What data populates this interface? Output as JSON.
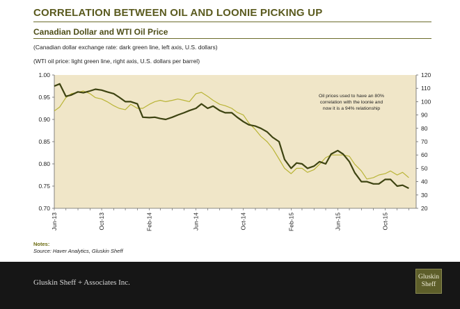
{
  "header": {
    "main_title": "CORRELATION BETWEEN OIL AND LOONIE PICKING UP",
    "chart_title": "Canadian Dollar and WTI Oil Price",
    "subtitle_1": "(Canadian dollar exchange rate: dark green line, left axis, U.S. dollars)",
    "subtitle_2": "(WTI oil price: light green line, right axis, U.S. dollars per barrel)"
  },
  "notes": {
    "heading": "Notes:",
    "source": "Source: Haver Analytics, Gluskin Sheff"
  },
  "footer": {
    "company": "Gluskin Sheff + Associates Inc.",
    "logo_line1": "Gluskin",
    "logo_line2": "Sheff"
  },
  "colors": {
    "plot_background": "#f0e6c8",
    "cad_line": "#3d4311",
    "oil_line": "#b9b436",
    "title": "#5a5a1e",
    "footer_background": "#161616"
  },
  "chart_data": {
    "type": "line",
    "x_tick_labels": [
      "Jun-13",
      "Oct-13",
      "Feb-14",
      "Jun-14",
      "Oct-14",
      "Feb-15",
      "Jun-15",
      "Oct-15"
    ],
    "x": [
      "2013-06-01",
      "2013-06-15",
      "2013-07-01",
      "2013-07-15",
      "2013-08-01",
      "2013-08-15",
      "2013-09-01",
      "2013-09-15",
      "2013-10-01",
      "2013-10-15",
      "2013-11-01",
      "2013-11-15",
      "2013-12-01",
      "2013-12-15",
      "2014-01-01",
      "2014-01-15",
      "2014-02-01",
      "2014-02-15",
      "2014-03-01",
      "2014-03-15",
      "2014-04-01",
      "2014-04-15",
      "2014-05-01",
      "2014-05-15",
      "2014-06-01",
      "2014-06-15",
      "2014-07-01",
      "2014-07-15",
      "2014-08-01",
      "2014-08-15",
      "2014-09-01",
      "2014-09-15",
      "2014-10-01",
      "2014-10-15",
      "2014-11-01",
      "2014-11-15",
      "2014-12-01",
      "2014-12-15",
      "2015-01-01",
      "2015-01-15",
      "2015-02-01",
      "2015-02-15",
      "2015-03-01",
      "2015-03-15",
      "2015-04-01",
      "2015-04-15",
      "2015-05-01",
      "2015-05-15",
      "2015-06-01",
      "2015-06-15",
      "2015-07-01",
      "2015-07-15",
      "2015-08-01",
      "2015-08-15",
      "2015-09-01",
      "2015-09-15",
      "2015-10-01",
      "2015-10-15",
      "2015-11-01",
      "2015-11-15",
      "2015-12-01"
    ],
    "series": [
      {
        "axis": "left",
        "values": [
          0.975,
          0.98,
          0.952,
          0.955,
          0.962,
          0.96,
          0.964,
          0.968,
          0.966,
          0.962,
          0.958,
          0.95,
          0.94,
          0.94,
          0.935,
          0.905,
          0.904,
          0.905,
          0.902,
          0.9,
          0.905,
          0.91,
          0.915,
          0.92,
          0.925,
          0.935,
          0.925,
          0.93,
          0.92,
          0.915,
          0.915,
          0.905,
          0.895,
          0.888,
          0.885,
          0.88,
          0.872,
          0.86,
          0.85,
          0.81,
          0.79,
          0.802,
          0.8,
          0.79,
          0.795,
          0.805,
          0.8,
          0.822,
          0.83,
          0.822,
          0.805,
          0.78,
          0.76,
          0.76,
          0.755,
          0.755,
          0.765,
          0.765,
          0.75,
          0.752,
          0.745
        ]
      },
      {
        "axis": "right",
        "values": [
          93,
          96,
          103,
          106,
          107,
          108,
          106,
          103,
          102,
          100,
          97,
          95,
          94,
          98,
          95,
          95,
          98,
          100,
          101,
          100,
          101,
          102,
          101,
          100,
          106,
          107,
          104,
          101,
          98,
          97,
          95,
          92,
          90,
          84,
          79,
          74,
          70,
          65,
          57,
          50,
          46,
          50,
          50,
          47,
          49,
          53,
          58,
          60,
          60,
          60,
          59,
          53,
          48,
          42,
          43,
          45,
          46,
          48,
          45,
          47,
          43
        ]
      }
    ],
    "ylim_left": [
      0.7,
      1.0
    ],
    "yticks_left": [
      "0.70",
      "0.75",
      "0.80",
      "0.85",
      "0.90",
      "0.95",
      "1.00"
    ],
    "ylim_right": [
      20,
      120
    ],
    "yticks_right": [
      "20",
      "30",
      "40",
      "50",
      "60",
      "70",
      "80",
      "90",
      "100",
      "110",
      "120"
    ],
    "annotation": [
      "Oil prices used to have an 80%",
      "correlation  with the loonie and",
      "now it is a 94% relationship"
    ],
    "grid": false,
    "legend": "none"
  }
}
